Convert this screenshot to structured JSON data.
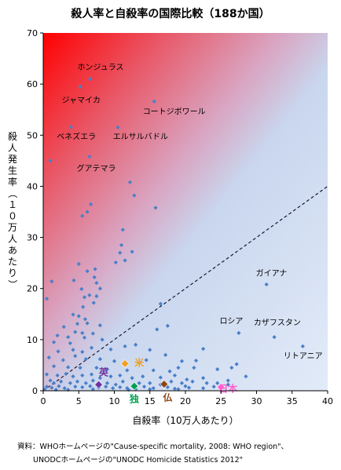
{
  "chart_data": {
    "type": "scatter",
    "title": "殺人率と自殺率の国際比較（188か国）",
    "xlabel": "自殺率（10万人あたり）",
    "ylabel": "殺人発生率（１０万人あたり）",
    "xlim": [
      0,
      40
    ],
    "ylim": [
      0,
      70
    ],
    "x_ticks": [
      0,
      5,
      10,
      15,
      20,
      25,
      30,
      35,
      40
    ],
    "y_ticks": [
      0,
      10,
      20,
      30,
      40,
      50,
      60,
      70
    ],
    "grid": false,
    "point_color": "#4a7fc8",
    "reference_line": {
      "from": [
        0,
        0
      ],
      "to": [
        40,
        40
      ],
      "style": "dashed",
      "color": "#1a1a33"
    },
    "points": [
      [
        6.6,
        61
      ],
      [
        5.2,
        59.5
      ],
      [
        15.6,
        56.6
      ],
      [
        3.9,
        51.6
      ],
      [
        10.5,
        51.5
      ],
      [
        6.5,
        45.8
      ],
      [
        1.0,
        45.0
      ],
      [
        12.2,
        40.8
      ],
      [
        12.8,
        38.2
      ],
      [
        6.7,
        36.5
      ],
      [
        5.5,
        34.2
      ],
      [
        15.8,
        35.8
      ],
      [
        6.2,
        35.0
      ],
      [
        11.2,
        31.5
      ],
      [
        11.0,
        28.5
      ],
      [
        10.8,
        27.0
      ],
      [
        12.5,
        27.2
      ],
      [
        11.5,
        25.5
      ],
      [
        5.0,
        24.8
      ],
      [
        6.2,
        23.4
      ],
      [
        7.3,
        23.8
      ],
      [
        10.2,
        25.1
      ],
      [
        7.2,
        22.2
      ],
      [
        4.3,
        21.6
      ],
      [
        1.2,
        21.4
      ],
      [
        0.5,
        18.0
      ],
      [
        5.4,
        19.9
      ],
      [
        7.5,
        21.1
      ],
      [
        8.0,
        20.0
      ],
      [
        5.8,
        18.3
      ],
      [
        6.5,
        18.7
      ],
      [
        7.5,
        18.5
      ],
      [
        7.1,
        17.2
      ],
      [
        5.6,
        16.4
      ],
      [
        16.5,
        17.0
      ],
      [
        31.4,
        20.8
      ],
      [
        4.2,
        14.9
      ],
      [
        5.0,
        14.6
      ],
      [
        5.9,
        14.0
      ],
      [
        4.8,
        13.1
      ],
      [
        2.9,
        12.5
      ],
      [
        6.2,
        13.2
      ],
      [
        8.0,
        12.8
      ],
      [
        17.5,
        12.7
      ],
      [
        16.0,
        12.0
      ],
      [
        4.5,
        11.5
      ],
      [
        5.5,
        11.3
      ],
      [
        7.0,
        11.2
      ],
      [
        2.0,
        10.8
      ],
      [
        3.5,
        10.5
      ],
      [
        5.8,
        10.4
      ],
      [
        3.8,
        9.3
      ],
      [
        1.5,
        9.5
      ],
      [
        8.3,
        10.0
      ],
      [
        4.2,
        8.0
      ],
      [
        2.1,
        7.7
      ],
      [
        5.5,
        7.6
      ],
      [
        6.8,
        8.4
      ],
      [
        9.5,
        8.1
      ],
      [
        11.5,
        8.7
      ],
      [
        13.0,
        9.0
      ],
      [
        15.0,
        8.0
      ],
      [
        22.5,
        8.2
      ],
      [
        27.5,
        11.3
      ],
      [
        32.5,
        10.5
      ],
      [
        36.5,
        8.7
      ],
      [
        0.8,
        6.5
      ],
      [
        2.8,
        6.0
      ],
      [
        4.5,
        6.8
      ],
      [
        6.0,
        6.2
      ],
      [
        8.0,
        6.2
      ],
      [
        10.0,
        5.8
      ],
      [
        13.5,
        5.5
      ],
      [
        14.5,
        6.0
      ],
      [
        17.2,
        7.0
      ],
      [
        19.5,
        5.8
      ],
      [
        21.5,
        5.9
      ],
      [
        27.2,
        5.2
      ],
      [
        1.5,
        4.8
      ],
      [
        3.5,
        4.6
      ],
      [
        5.2,
        4.5
      ],
      [
        7.5,
        4.5
      ],
      [
        9.0,
        4.2
      ],
      [
        11.8,
        4.0
      ],
      [
        15.5,
        4.0
      ],
      [
        17.8,
        3.8
      ],
      [
        19.0,
        4.5
      ],
      [
        21.2,
        4.5
      ],
      [
        24.5,
        4.2
      ],
      [
        26.5,
        4.5
      ],
      [
        0.5,
        3.2
      ],
      [
        2.0,
        3.0
      ],
      [
        3.2,
        3.3
      ],
      [
        4.2,
        2.8
      ],
      [
        5.5,
        3.0
      ],
      [
        6.8,
        3.2
      ],
      [
        8.0,
        2.5
      ],
      [
        9.5,
        2.8
      ],
      [
        10.8,
        3.0
      ],
      [
        12.5,
        2.5
      ],
      [
        14.0,
        2.8
      ],
      [
        16.5,
        2.6
      ],
      [
        18.5,
        3.0
      ],
      [
        20.2,
        2.2
      ],
      [
        22.5,
        2.5
      ],
      [
        24.5,
        1.5
      ],
      [
        26.0,
        2.0
      ],
      [
        28.5,
        2.8
      ],
      [
        1.0,
        2.0
      ],
      [
        1.5,
        1.5
      ],
      [
        2.5,
        1.8
      ],
      [
        3.8,
        1.5
      ],
      [
        4.8,
        1.8
      ],
      [
        6.0,
        1.5
      ],
      [
        7.0,
        2.0
      ],
      [
        9.0,
        1.5
      ],
      [
        10.2,
        1.2
      ],
      [
        11.2,
        1.8
      ],
      [
        13.5,
        1.5
      ],
      [
        15.0,
        1.5
      ],
      [
        16.5,
        1.2
      ],
      [
        18.0,
        1.8
      ],
      [
        19.5,
        1.5
      ],
      [
        21.0,
        1.8
      ],
      [
        23.0,
        1.5
      ],
      [
        26.0,
        1.2
      ],
      [
        0.5,
        0.8
      ],
      [
        1.2,
        0.6
      ],
      [
        2.2,
        0.9
      ],
      [
        3.0,
        0.5
      ],
      [
        4.5,
        0.8
      ],
      [
        5.5,
        0.7
      ],
      [
        6.6,
        0.9
      ],
      [
        7.8,
        0.6
      ],
      [
        8.8,
        0.8
      ],
      [
        9.8,
        0.5
      ],
      [
        10.8,
        0.7
      ],
      [
        11.8,
        0.5
      ],
      [
        14.2,
        0.8
      ],
      [
        15.5,
        0.5
      ],
      [
        17.5,
        0.7
      ],
      [
        18.5,
        0.4
      ],
      [
        20.0,
        0.9
      ],
      [
        22.5,
        0.5
      ],
      [
        24.0,
        0.8
      ],
      [
        0.2,
        0.3
      ],
      [
        3.5,
        0.2
      ],
      [
        7.0,
        0.3
      ],
      [
        13.0,
        0.3
      ],
      [
        19.0,
        0.3
      ],
      [
        20.5,
        0.6
      ],
      [
        1.8,
        0.2
      ],
      [
        12.0,
        0.2
      ],
      [
        15.0,
        0.3
      ]
    ],
    "annotations": [
      {
        "text": "ホンジュラス",
        "x": 4.8,
        "y": 62.8
      },
      {
        "text": "ジャマイカ",
        "x": 2.6,
        "y": 56.3
      },
      {
        "text": "コートジボワール",
        "x": 14.0,
        "y": 54.1
      },
      {
        "text": "ベネズエラ",
        "x": 1.9,
        "y": 49.2
      },
      {
        "text": "エルサルバドル",
        "x": 9.8,
        "y": 49.2
      },
      {
        "text": "グアテマラ",
        "x": 4.7,
        "y": 43.0
      },
      {
        "text": "ガイアナ",
        "x": 29.9,
        "y": 22.5
      },
      {
        "text": "ロシア",
        "x": 24.8,
        "y": 13.1
      },
      {
        "text": "カザフスタン",
        "x": 29.6,
        "y": 12.8
      },
      {
        "text": "リトアニア",
        "x": 33.8,
        "y": 6.3
      }
    ],
    "highlighted": [
      {
        "label": "英",
        "x": 7.8,
        "y": 1.2,
        "color": "#7030a0",
        "label_x": 8.5,
        "label_y": 3.0
      },
      {
        "label": "米",
        "x": 11.5,
        "y": 5.3,
        "color": "#f0a020",
        "label_x": 13.5,
        "label_y": 4.8
      },
      {
        "label": "独",
        "x": 12.8,
        "y": 0.9,
        "color": "#00a050",
        "label_x": 12.8,
        "label_y": -2.2
      },
      {
        "label": "仏",
        "x": 17.0,
        "y": 1.3,
        "color": "#8b4513",
        "label_x": 17.5,
        "label_y": -2.0
      },
      {
        "label": "日本",
        "x": 25.0,
        "y": 0.7,
        "color": "#ff60d0",
        "label_x": 26.0,
        "label_y": -0.2
      }
    ]
  },
  "source": {
    "line1": "資料：WHOホームページの\"Cause-specific mortality, 2008: WHO region\"、",
    "line2": "UNODCホームページの\"UNODC Homicide Statistics 2012\""
  }
}
